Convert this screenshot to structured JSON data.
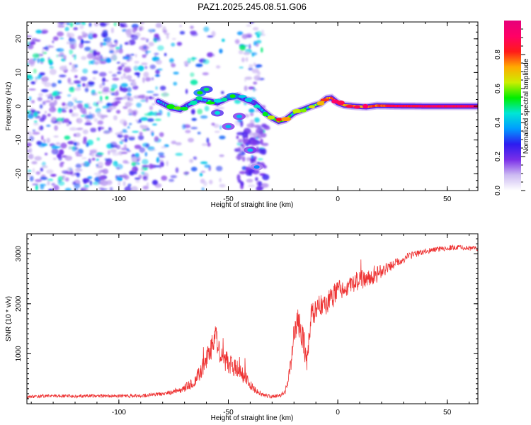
{
  "title": "PAZ1.2025.245.08.51.G06",
  "colors": {
    "snr_line": "#ee3333",
    "frame": "#000000",
    "colorbar": [
      "#ffffff",
      "#cdbbf2",
      "#7a2fe8",
      "#2c1cf0",
      "#009cff",
      "#00e6d6",
      "#00ee00",
      "#ccee00",
      "#ffaa00",
      "#ff1a1a",
      "#ff0066",
      "#e6007a"
    ]
  },
  "chart_data": [
    {
      "type": "heatmap",
      "xlabel": "Height of straight line (km)",
      "ylabel": "Frequency (Hz)",
      "xlim": [
        -142,
        64
      ],
      "ylim": [
        -25,
        25
      ],
      "xticks": [
        -100,
        -50,
        0,
        50
      ],
      "xtick_labels": [
        "-100",
        "-50",
        "0",
        "50"
      ],
      "yticks": [
        -20,
        -10,
        0,
        10,
        20
      ],
      "ytick_labels": [
        "-20",
        "-10",
        "0",
        "10",
        "20"
      ],
      "colorbar": {
        "label": "Normalized spectral amplitude",
        "range": [
          0,
          1
        ],
        "ticks": [
          0.0,
          0.2,
          0.4,
          0.6,
          0.8
        ],
        "tick_labels": [
          "0.0",
          "0.2",
          "0.4",
          "0.6",
          "0.8"
        ]
      },
      "ridge": {
        "x": [
          -82,
          -76,
          -72,
          -68,
          -63,
          -58,
          -55,
          -50,
          -46,
          -42,
          -38,
          -34,
          -30,
          -27,
          -24,
          -20,
          -16,
          -12,
          -8,
          -5,
          -3,
          0,
          3,
          8,
          13,
          18,
          25,
          40,
          64
        ],
        "y": [
          1.5,
          -0.5,
          -1,
          0.5,
          2,
          1.5,
          1,
          2.5,
          3,
          2,
          1,
          -1.5,
          -3.5,
          -4.5,
          -4,
          -2,
          -1,
          0,
          0.8,
          2.3,
          2.5,
          1,
          0.3,
          0,
          -0.2,
          0.2,
          0.1,
          0,
          0
        ],
        "amplitude": [
          0.3,
          0.4,
          0.45,
          0.3,
          0.35,
          0.4,
          0.3,
          0.35,
          0.3,
          0.25,
          0.3,
          0.35,
          0.5,
          0.7,
          0.6,
          0.5,
          0.45,
          0.5,
          0.55,
          0.7,
          0.8,
          0.75,
          0.7,
          0.72,
          0.76,
          0.8,
          0.85,
          0.9,
          0.9
        ]
      }
    },
    {
      "type": "line",
      "xlabel": "Height of straight line (km)",
      "ylabel": "SNR (10 * v/v)",
      "xlim": [
        -142,
        64
      ],
      "ylim": [
        0,
        3400
      ],
      "xticks": [
        -100,
        -50,
        0,
        50
      ],
      "xtick_labels": [
        "-100",
        "-50",
        "0",
        "50"
      ],
      "yticks": [
        1000,
        2000,
        3000
      ],
      "ytick_labels": [
        "1000",
        "2000",
        "3000"
      ],
      "series": [
        {
          "x": [
            -142,
            -130,
            -120,
            -110,
            -100,
            -90,
            -80,
            -72,
            -66,
            -62,
            -58,
            -56,
            -54,
            -50,
            -46,
            -42,
            -38,
            -34,
            -30,
            -26,
            -24,
            -22,
            -20,
            -18,
            -16,
            -14,
            -12,
            -10,
            -8,
            -6,
            -4,
            -2,
            0,
            4,
            8,
            12,
            16,
            20,
            24,
            28,
            32,
            36,
            40,
            44,
            48,
            52,
            56,
            60,
            64
          ],
          "y": [
            140,
            160,
            150,
            160,
            155,
            160,
            200,
            270,
            420,
            700,
            1100,
            1400,
            1000,
            800,
            700,
            500,
            280,
            170,
            140,
            170,
            250,
            600,
            1400,
            1700,
            1300,
            900,
            1800,
            1900,
            2000,
            1900,
            2100,
            2150,
            2300,
            2300,
            2450,
            2500,
            2550,
            2650,
            2750,
            2850,
            2950,
            3000,
            3050,
            3080,
            3100,
            3120,
            3130,
            3110,
            3100
          ],
          "noise": [
            60,
            60,
            60,
            60,
            60,
            60,
            70,
            120,
            200,
            350,
            450,
            420,
            420,
            380,
            320,
            250,
            120,
            70,
            60,
            70,
            100,
            300,
            400,
            500,
            500,
            500,
            500,
            450,
            450,
            450,
            400,
            400,
            400,
            350,
            350,
            350,
            300,
            250,
            200,
            170,
            150,
            120,
            100,
            100,
            90,
            90,
            90,
            90,
            90
          ]
        }
      ]
    }
  ]
}
